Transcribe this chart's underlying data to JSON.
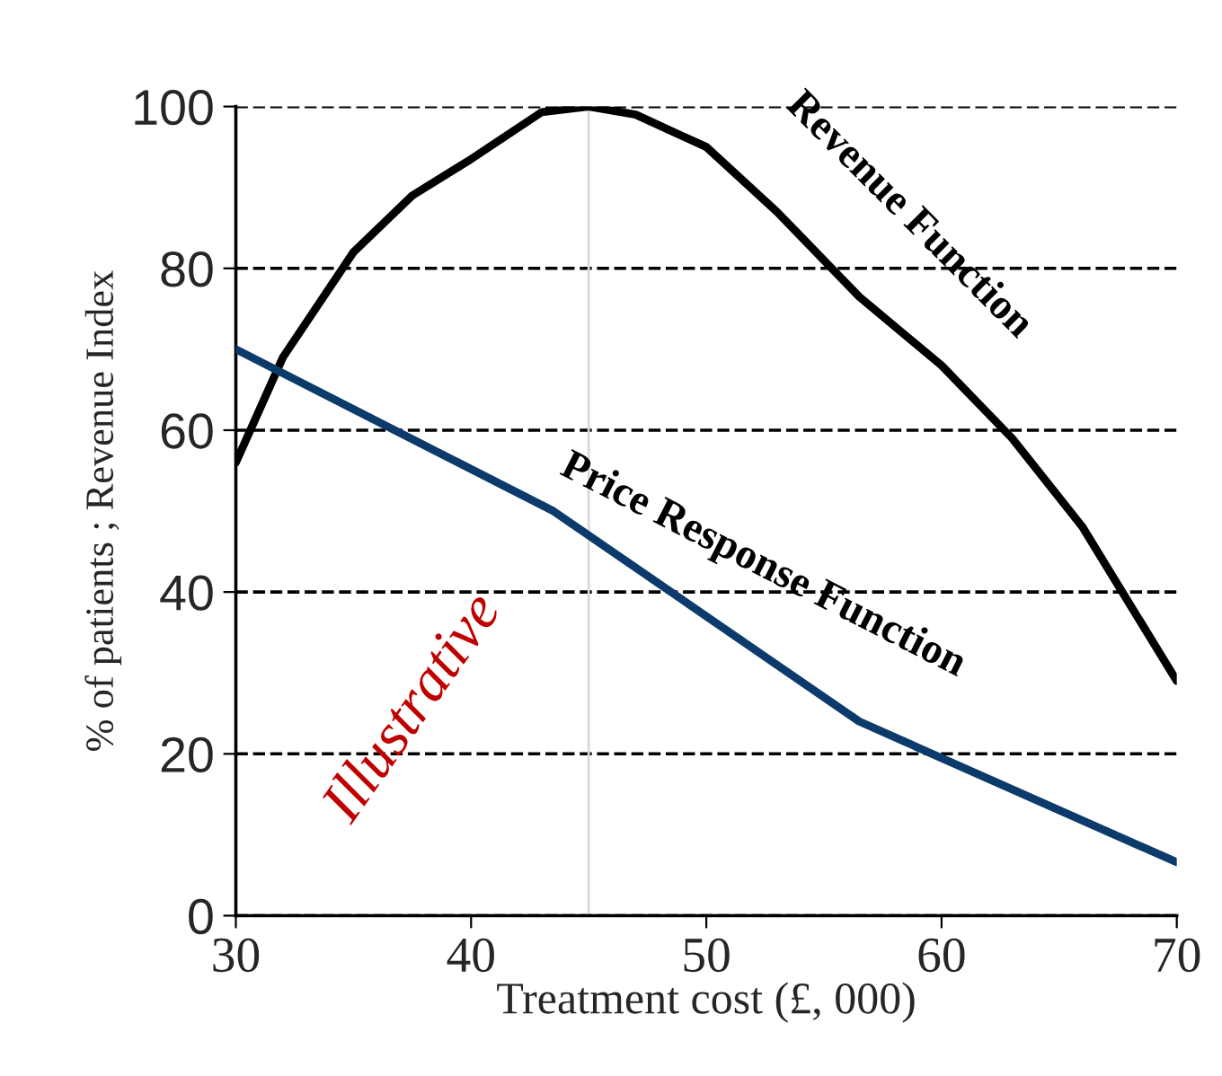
{
  "chart_data": {
    "type": "line",
    "xlabel": "Treatment cost (£, 000)",
    "ylabel": "% of patients ; Revenue Index",
    "xlim": [
      30,
      70
    ],
    "xticks": [
      30,
      40,
      50,
      60,
      70
    ],
    "ylim": [
      0,
      100
    ],
    "yticks": [
      0,
      20,
      40,
      60,
      80,
      100
    ],
    "grid": "y",
    "series": [
      {
        "name": "Revenue Function",
        "color": "#000000",
        "x": [
          30,
          32,
          35,
          37.5,
          40,
          43,
          45,
          47,
          50,
          53,
          56.5,
          60,
          63,
          66,
          70
        ],
        "values": [
          56,
          69,
          82,
          89,
          93.5,
          99.3,
          100,
          99,
          95,
          87,
          76.5,
          68,
          59,
          48,
          29
        ]
      },
      {
        "name": "Price Response Function",
        "color": "#0b3a6b",
        "x": [
          30,
          43.5,
          56.5,
          70
        ],
        "values": [
          70,
          50,
          24,
          6.6
        ]
      }
    ],
    "ref_lines": [
      {
        "axis": "x",
        "value": 45,
        "color": "#d9d9d9"
      }
    ],
    "annotations": [
      "Illustrative"
    ]
  }
}
